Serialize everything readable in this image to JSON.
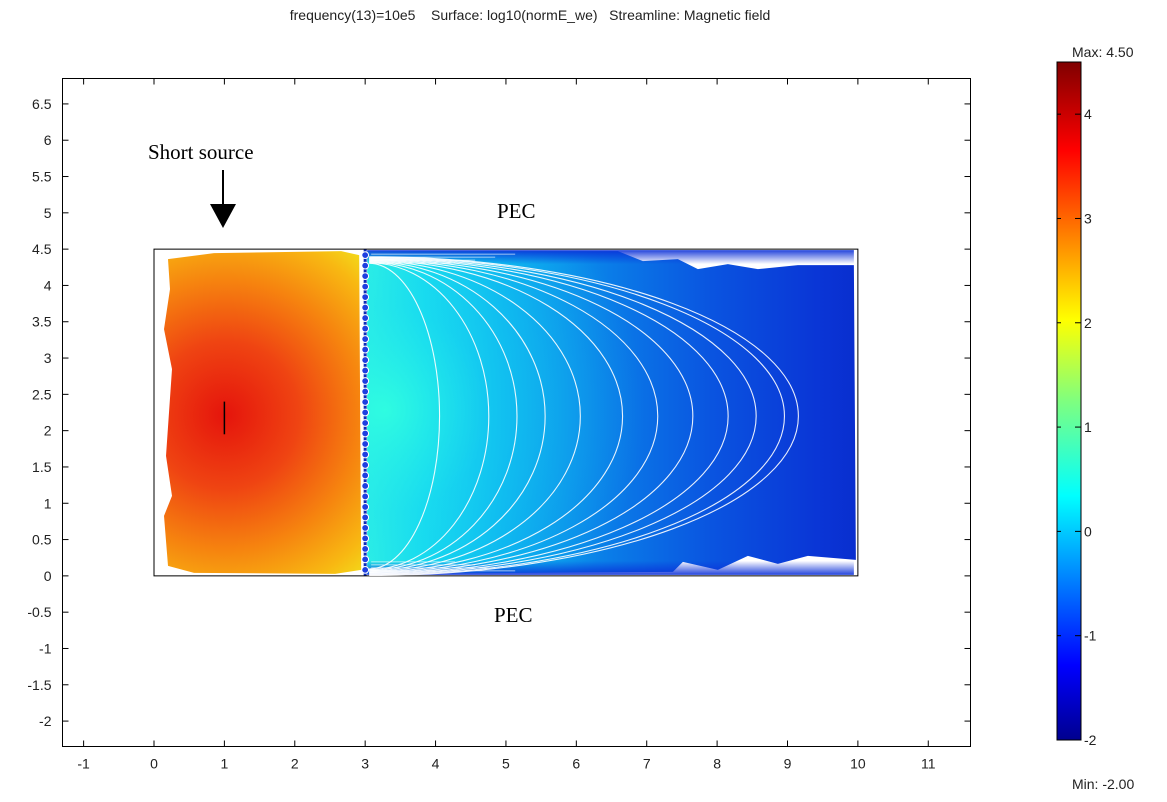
{
  "chart_data": {
    "type": "heatmap",
    "title": "frequency(13)=10e5    Surface: log10(normE_we)   Streamline: Magnetic field",
    "xlabel": "",
    "ylabel": "",
    "xlim": [
      -1.3,
      11.6
    ],
    "ylim": [
      -2.35,
      6.85
    ],
    "x_ticks": [
      -1,
      0,
      1,
      2,
      3,
      4,
      5,
      6,
      7,
      8,
      9,
      10,
      11
    ],
    "y_ticks": [
      6.5,
      6,
      5.5,
      5,
      4.5,
      4,
      3.5,
      3,
      2.5,
      2,
      1.5,
      1,
      0.5,
      0,
      -0.5,
      -1,
      -1.5,
      -2
    ],
    "domain": {
      "x": [
        0,
        10
      ],
      "y": [
        0,
        4.5
      ]
    },
    "divider_x": 3,
    "source": {
      "x": 1,
      "y": [
        1.95,
        2.4
      ]
    },
    "field_samples": [
      {
        "x": 1.0,
        "y": 2.2,
        "value": 4.4
      },
      {
        "x": 2.9,
        "y": 2.2,
        "value": 2.8
      },
      {
        "x": 3.1,
        "y": 2.2,
        "value": 0.7
      },
      {
        "x": 6.0,
        "y": 2.2,
        "value": -0.8
      },
      {
        "x": 10.0,
        "y": 2.2,
        "value": -1.8
      }
    ],
    "colorbar": {
      "max": 4.5,
      "min": -2.0,
      "max_label": "Max: 4.50",
      "min_label": "Min: -2.00",
      "ticks": [
        "4",
        "3",
        "2",
        "1",
        "0",
        "-1",
        "-2"
      ]
    },
    "annotations": {
      "short_source": "Short source",
      "pec_top": "PEC",
      "pec_bottom": "PEC"
    },
    "streamline_apex_x": [
      4.0,
      4.7,
      5.1,
      5.5,
      6.0,
      6.6,
      7.1,
      7.6,
      8.1,
      8.5,
      8.9,
      9.1
    ],
    "colors": {
      "hot": "#e32a0e",
      "cold": "#0a2fd8",
      "streamline": "#ffffff"
    }
  }
}
